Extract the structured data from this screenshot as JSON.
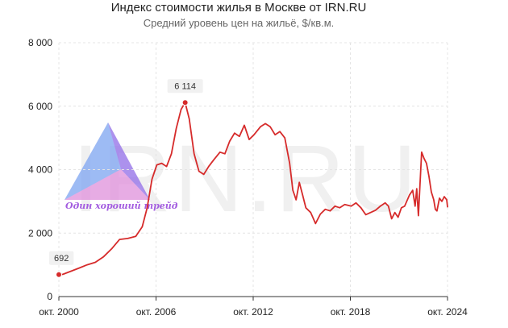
{
  "chart_data": {
    "type": "line",
    "title": "Индекс стоимости жилья в Москве от IRN.RU",
    "subtitle": "Средний уровень цен на жильё, $/кв.м.",
    "xlabel": "",
    "ylabel": "",
    "x_range": [
      2000.75,
      2024.75
    ],
    "ylim": [
      0,
      8000
    ],
    "y_ticks": [
      0,
      2000,
      4000,
      6000,
      8000
    ],
    "y_tick_labels": [
      "0",
      "2 000",
      "4 000",
      "6 000",
      "8 000"
    ],
    "x_ticks": [
      2000.75,
      2006.75,
      2012.75,
      2018.75,
      2024.75
    ],
    "x_tick_labels": [
      "окт. 2000",
      "окт. 2006",
      "окт. 2012",
      "окт. 2018",
      "окт. 2024"
    ],
    "grid": true,
    "series": [
      {
        "color": "#d62b2b",
        "points": [
          [
            2000.75,
            692
          ],
          [
            2001.0,
            700
          ],
          [
            2001.5,
            800
          ],
          [
            2002.0,
            900
          ],
          [
            2002.5,
            1000
          ],
          [
            2003.0,
            1080
          ],
          [
            2003.5,
            1250
          ],
          [
            2004.0,
            1500
          ],
          [
            2004.5,
            1800
          ],
          [
            2005.0,
            1830
          ],
          [
            2005.5,
            1900
          ],
          [
            2005.9,
            2200
          ],
          [
            2006.2,
            2800
          ],
          [
            2006.5,
            3700
          ],
          [
            2006.8,
            4150
          ],
          [
            2007.1,
            4200
          ],
          [
            2007.4,
            4100
          ],
          [
            2007.7,
            4500
          ],
          [
            2008.0,
            5300
          ],
          [
            2008.3,
            5900
          ],
          [
            2008.55,
            6114
          ],
          [
            2008.8,
            5600
          ],
          [
            2009.1,
            4500
          ],
          [
            2009.4,
            3950
          ],
          [
            2009.7,
            3850
          ],
          [
            2010.0,
            4100
          ],
          [
            2010.3,
            4300
          ],
          [
            2010.7,
            4550
          ],
          [
            2011.0,
            4500
          ],
          [
            2011.3,
            4900
          ],
          [
            2011.6,
            5150
          ],
          [
            2011.9,
            5050
          ],
          [
            2012.2,
            5400
          ],
          [
            2012.5,
            4950
          ],
          [
            2012.8,
            5100
          ],
          [
            2013.2,
            5350
          ],
          [
            2013.5,
            5450
          ],
          [
            2013.8,
            5350
          ],
          [
            2014.1,
            5100
          ],
          [
            2014.4,
            5200
          ],
          [
            2014.7,
            5000
          ],
          [
            2015.0,
            4200
          ],
          [
            2015.2,
            3350
          ],
          [
            2015.4,
            3050
          ],
          [
            2015.6,
            3600
          ],
          [
            2015.8,
            3200
          ],
          [
            2016.0,
            2800
          ],
          [
            2016.3,
            2650
          ],
          [
            2016.6,
            2300
          ],
          [
            2016.9,
            2600
          ],
          [
            2017.2,
            2750
          ],
          [
            2017.5,
            2700
          ],
          [
            2017.8,
            2850
          ],
          [
            2018.1,
            2800
          ],
          [
            2018.4,
            2900
          ],
          [
            2018.8,
            2850
          ],
          [
            2019.1,
            2950
          ],
          [
            2019.4,
            2800
          ],
          [
            2019.7,
            2580
          ],
          [
            2020.0,
            2650
          ],
          [
            2020.3,
            2720
          ],
          [
            2020.6,
            2850
          ],
          [
            2020.9,
            2950
          ],
          [
            2021.1,
            2850
          ],
          [
            2021.3,
            2450
          ],
          [
            2021.5,
            2650
          ],
          [
            2021.7,
            2500
          ],
          [
            2021.9,
            2800
          ],
          [
            2022.1,
            2850
          ],
          [
            2022.4,
            3200
          ],
          [
            2022.6,
            3350
          ],
          [
            2022.75,
            2850
          ],
          [
            2022.85,
            3400
          ],
          [
            2022.95,
            2550
          ],
          [
            2023.15,
            4550
          ],
          [
            2023.3,
            4350
          ],
          [
            2023.45,
            4200
          ],
          [
            2023.6,
            3800
          ],
          [
            2023.75,
            3300
          ],
          [
            2023.9,
            3050
          ],
          [
            2024.0,
            2750
          ],
          [
            2024.1,
            2700
          ],
          [
            2024.25,
            3100
          ],
          [
            2024.4,
            3000
          ],
          [
            2024.55,
            3150
          ],
          [
            2024.7,
            3050
          ],
          [
            2024.75,
            2830
          ]
        ]
      }
    ],
    "annotations": [
      {
        "x": 2000.75,
        "y": 692,
        "label": "692"
      },
      {
        "x": 2008.55,
        "y": 6114,
        "label": "6 114"
      }
    ]
  },
  "watermark": {
    "text": "IRN.RU",
    "caption": "Один хороший трейд"
  }
}
